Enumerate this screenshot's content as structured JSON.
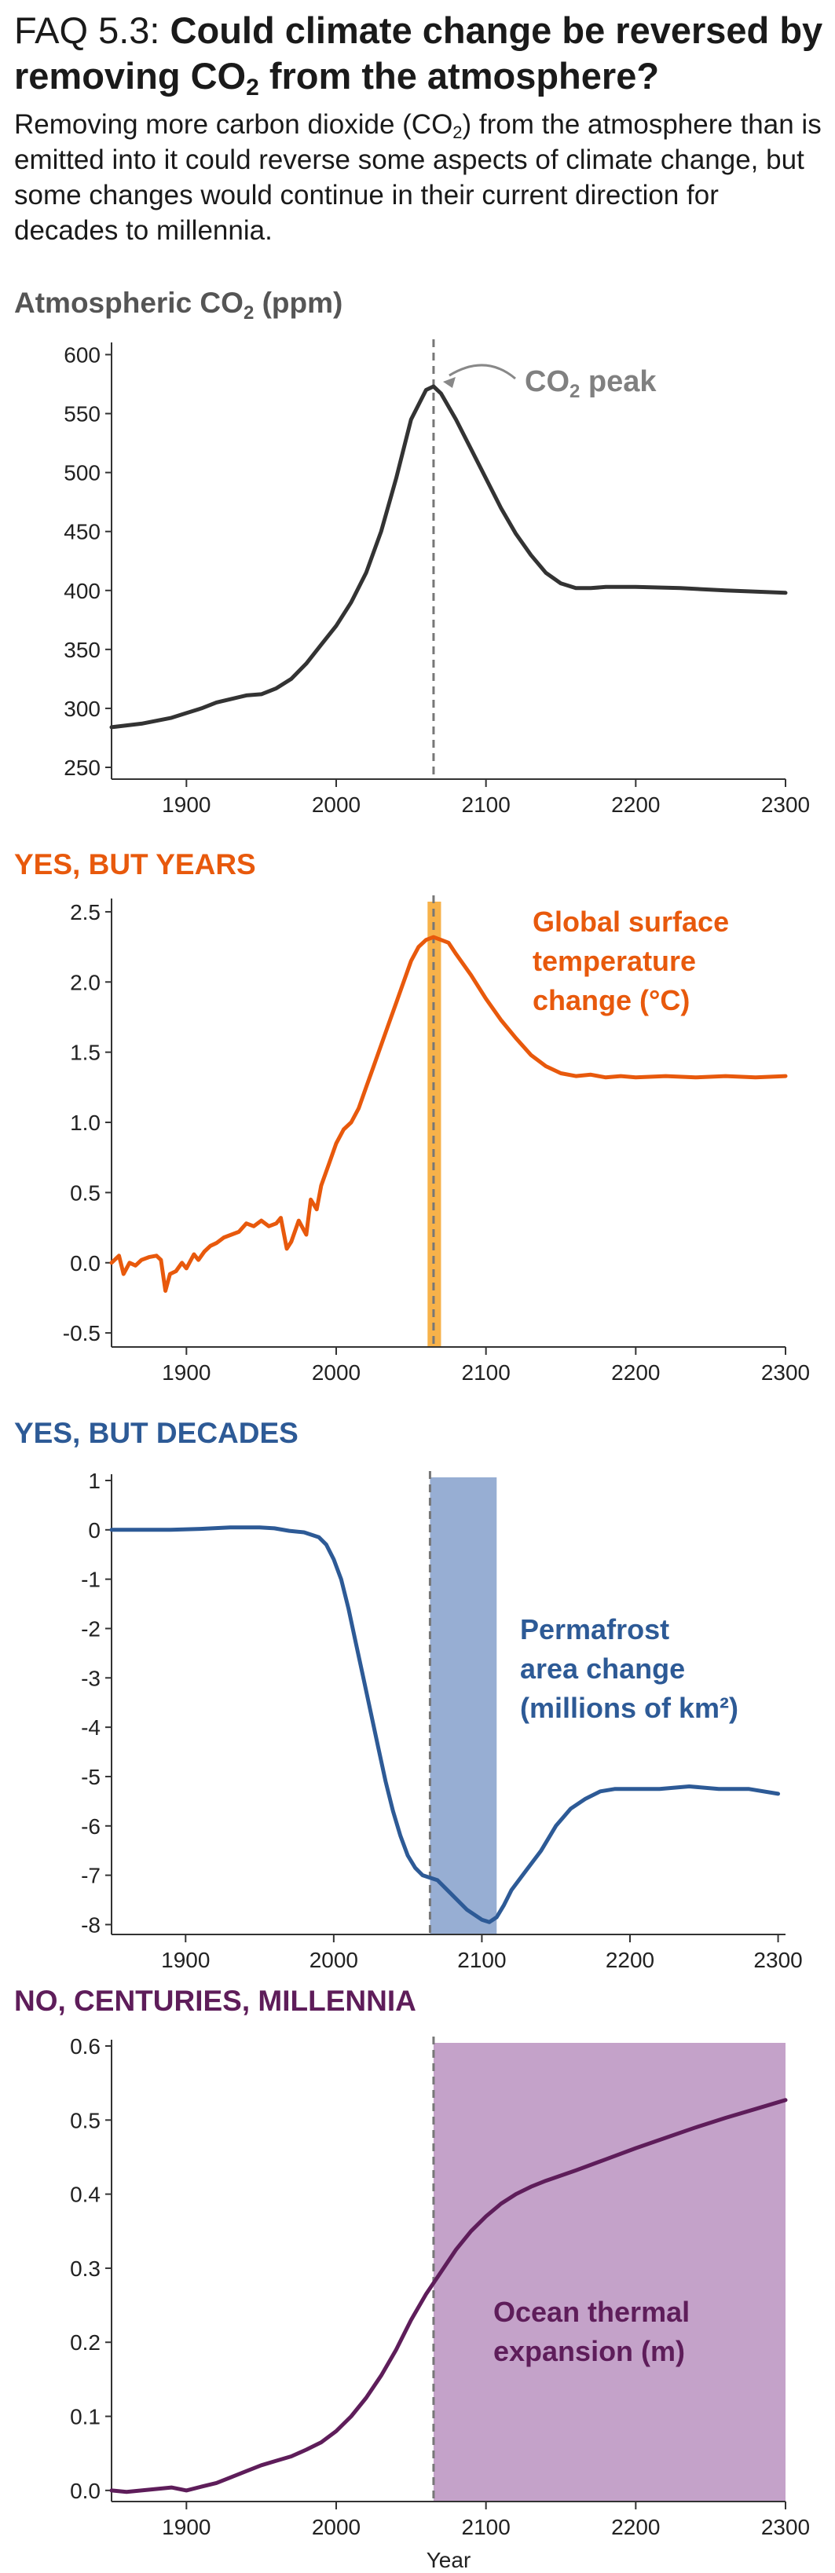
{
  "header": {
    "faq_label": "FAQ 5.3:",
    "question_part1": "Could climate change be reversed by removing CO",
    "question_sub": "2",
    "question_part2": " from the atmosphere?",
    "subtitle_part1": "Removing more carbon dioxide (CO",
    "subtitle_sub": "2",
    "subtitle_part2": ") from the atmosphere than is emitted into it could reverse some aspects of climate change, but some changes would continue in their current direction for decades to millennia."
  },
  "colors": {
    "co2": "#333333",
    "temperature": "#e8590c",
    "temperature_band": "#f7b24a",
    "permafrost": "#2d5a96",
    "permafrost_band": "#97aed3",
    "ocean": "#5e1d5a",
    "ocean_band": "#c4a2c9",
    "co2_header": "#555555",
    "peak_line": "#777777"
  },
  "chart_data": [
    {
      "type": "line",
      "panel_title": "Atmospheric CO",
      "panel_title_sub": "2",
      "panel_title_suffix": " (ppm)",
      "annotation": "CO",
      "annotation_sub": "2",
      "annotation_suffix": " peak",
      "xlim": [
        1850,
        2300
      ],
      "ylim": [
        240,
        605
      ],
      "yticks": [
        250,
        300,
        350,
        400,
        450,
        500,
        550,
        600
      ],
      "ytick_labels": [
        "250",
        "300",
        "350",
        "400",
        "450",
        "500",
        "550",
        "600"
      ],
      "xticks": [
        1900,
        2000,
        2100,
        2200,
        2300
      ],
      "xtick_labels": [
        "1900",
        "2000",
        "2100",
        "2200",
        "2300"
      ],
      "peak_year": 2065,
      "band": null,
      "series": [
        {
          "x": [
            1850,
            1870,
            1890,
            1900,
            1910,
            1920,
            1930,
            1940,
            1950,
            1960,
            1970,
            1980,
            1990,
            2000,
            2010,
            2020,
            2030,
            2040,
            2050,
            2060,
            2065,
            2070,
            2080,
            2090,
            2100,
            2110,
            2120,
            2130,
            2140,
            2150,
            2160,
            2170,
            2180,
            2200,
            2230,
            2260,
            2300
          ],
          "y": [
            284,
            287,
            292,
            296,
            300,
            305,
            308,
            311,
            312,
            317,
            325,
            338,
            354,
            370,
            390,
            415,
            450,
            495,
            545,
            570,
            573,
            567,
            545,
            520,
            495,
            470,
            448,
            430,
            415,
            406,
            402,
            402,
            403,
            403,
            402,
            400,
            398
          ]
        }
      ]
    },
    {
      "type": "line",
      "panel_title": "YES, BUT YEARS",
      "annotation_lines": [
        "Global surface",
        "temperature",
        "change (°C)"
      ],
      "xlim": [
        1850,
        2300
      ],
      "ylim": [
        -0.6,
        2.55
      ],
      "yticks": [
        -0.5,
        0.0,
        0.5,
        1.0,
        1.5,
        2.0,
        2.5
      ],
      "ytick_labels": [
        "-0.5",
        "0.0",
        "0.5",
        "1.0",
        "1.5",
        "2.0",
        "2.5"
      ],
      "xticks": [
        1900,
        2000,
        2100,
        2200,
        2300
      ],
      "xtick_labels": [
        "1900",
        "2000",
        "2100",
        "2200",
        "2300"
      ],
      "peak_year": 2065,
      "band": [
        2061,
        2070
      ],
      "series": [
        {
          "x": [
            1850,
            1855,
            1858,
            1862,
            1866,
            1870,
            1875,
            1880,
            1883,
            1886,
            1889,
            1893,
            1897,
            1900,
            1905,
            1908,
            1912,
            1916,
            1920,
            1925,
            1930,
            1935,
            1940,
            1945,
            1950,
            1955,
            1960,
            1963,
            1967,
            1970,
            1975,
            1980,
            1983,
            1987,
            1990,
            1995,
            2000,
            2005,
            2010,
            2015,
            2020,
            2025,
            2030,
            2035,
            2040,
            2045,
            2050,
            2055,
            2060,
            2065,
            2070,
            2075,
            2080,
            2090,
            2100,
            2110,
            2120,
            2130,
            2140,
            2150,
            2160,
            2170,
            2180,
            2190,
            2200,
            2220,
            2240,
            2260,
            2280,
            2300
          ],
          "y": [
            0.0,
            0.05,
            -0.08,
            0.0,
            -0.02,
            0.02,
            0.04,
            0.05,
            0.02,
            -0.2,
            -0.08,
            -0.06,
            0.0,
            -0.04,
            0.06,
            0.02,
            0.08,
            0.12,
            0.14,
            0.18,
            0.2,
            0.22,
            0.28,
            0.26,
            0.3,
            0.26,
            0.28,
            0.32,
            0.1,
            0.15,
            0.3,
            0.2,
            0.45,
            0.38,
            0.55,
            0.7,
            0.85,
            0.95,
            1.0,
            1.1,
            1.25,
            1.4,
            1.55,
            1.7,
            1.85,
            2.0,
            2.15,
            2.25,
            2.3,
            2.32,
            2.3,
            2.28,
            2.2,
            2.05,
            1.88,
            1.73,
            1.6,
            1.48,
            1.4,
            1.35,
            1.33,
            1.34,
            1.32,
            1.33,
            1.32,
            1.33,
            1.32,
            1.33,
            1.32,
            1.33
          ]
        }
      ]
    },
    {
      "type": "line",
      "panel_title": "YES, BUT DECADES",
      "annotation_lines": [
        "Permafrost",
        "area change",
        "(millions of km²)"
      ],
      "xlim": [
        1850,
        2305
      ],
      "ylim": [
        -8.2,
        1.0
      ],
      "yticks": [
        1,
        0,
        -1,
        -2,
        -3,
        -4,
        -5,
        -6,
        -7,
        -8
      ],
      "ytick_labels": [
        "1",
        "0",
        "-1",
        "-2",
        "-3",
        "-4",
        "-5",
        "-6",
        "-7",
        "-8"
      ],
      "xticks": [
        1900,
        2000,
        2100,
        2200,
        2300
      ],
      "xtick_labels": [
        "1900",
        "2000",
        "2100",
        "2200",
        "2300"
      ],
      "peak_year": 2065,
      "band": [
        2065,
        2110
      ],
      "series": [
        {
          "x": [
            1850,
            1870,
            1890,
            1910,
            1930,
            1950,
            1960,
            1970,
            1980,
            1990,
            1995,
            2000,
            2005,
            2010,
            2015,
            2020,
            2025,
            2030,
            2035,
            2040,
            2045,
            2050,
            2055,
            2060,
            2065,
            2070,
            2080,
            2090,
            2100,
            2105,
            2110,
            2115,
            2120,
            2130,
            2140,
            2150,
            2160,
            2170,
            2180,
            2190,
            2200,
            2220,
            2240,
            2260,
            2280,
            2300
          ],
          "y": [
            0.0,
            0.0,
            0.0,
            0.02,
            0.05,
            0.05,
            0.03,
            -0.02,
            -0.05,
            -0.15,
            -0.3,
            -0.6,
            -1.0,
            -1.6,
            -2.3,
            -3.0,
            -3.7,
            -4.4,
            -5.1,
            -5.7,
            -6.2,
            -6.6,
            -6.85,
            -7.0,
            -7.05,
            -7.1,
            -7.4,
            -7.7,
            -7.9,
            -7.95,
            -7.85,
            -7.6,
            -7.3,
            -6.9,
            -6.5,
            -6.0,
            -5.65,
            -5.45,
            -5.3,
            -5.25,
            -5.25,
            -5.25,
            -5.2,
            -5.25,
            -5.25,
            -5.35
          ]
        }
      ]
    },
    {
      "type": "line",
      "panel_title": "NO, CENTURIES, MILLENNIA",
      "annotation_lines": [
        "Ocean thermal",
        "expansion (m)"
      ],
      "xlabel": "Year",
      "xlim": [
        1850,
        2300
      ],
      "ylim": [
        -0.015,
        0.6
      ],
      "yticks": [
        0.0,
        0.1,
        0.2,
        0.3,
        0.4,
        0.5,
        0.6
      ],
      "ytick_labels": [
        "0.0",
        "0.1",
        "0.2",
        "0.3",
        "0.4",
        "0.5",
        "0.6"
      ],
      "xticks": [
        1900,
        2000,
        2100,
        2200,
        2300
      ],
      "xtick_labels": [
        "1900",
        "2000",
        "2100",
        "2200",
        "2300"
      ],
      "peak_year": 2065,
      "band": [
        2065,
        2300
      ],
      "series": [
        {
          "x": [
            1850,
            1860,
            1870,
            1880,
            1890,
            1900,
            1910,
            1920,
            1930,
            1940,
            1950,
            1960,
            1970,
            1980,
            1990,
            2000,
            2010,
            2020,
            2030,
            2040,
            2050,
            2060,
            2070,
            2080,
            2090,
            2100,
            2110,
            2120,
            2130,
            2140,
            2150,
            2160,
            2180,
            2200,
            2220,
            2240,
            2260,
            2280,
            2300
          ],
          "y": [
            0.0,
            -0.002,
            0.0,
            0.002,
            0.004,
            0.0,
            0.005,
            0.01,
            0.018,
            0.026,
            0.034,
            0.04,
            0.046,
            0.055,
            0.065,
            0.08,
            0.1,
            0.125,
            0.155,
            0.19,
            0.23,
            0.265,
            0.295,
            0.325,
            0.35,
            0.37,
            0.387,
            0.4,
            0.41,
            0.418,
            0.425,
            0.432,
            0.447,
            0.462,
            0.476,
            0.49,
            0.503,
            0.515,
            0.527
          ]
        }
      ]
    }
  ]
}
